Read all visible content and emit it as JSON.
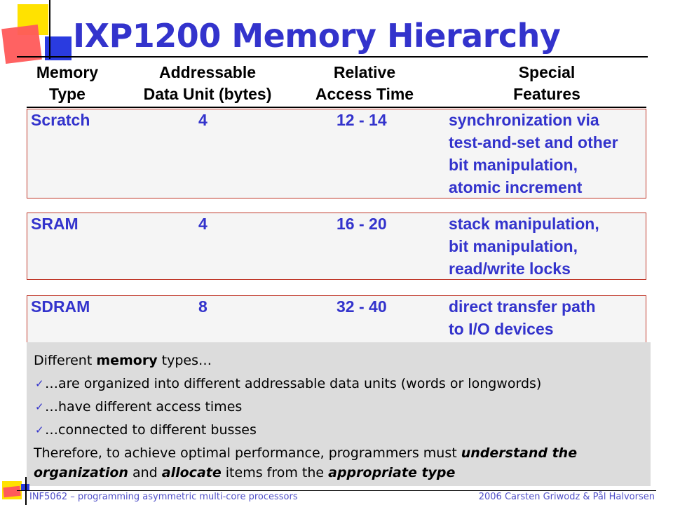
{
  "title": "IXP1200 Memory Hierarchy",
  "columns": {
    "type": [
      "Memory",
      "Type"
    ],
    "unit": [
      "Addressable",
      "Data Unit (bytes)"
    ],
    "time": [
      "Relative",
      "Access Time"
    ],
    "features": [
      "Special",
      "Features"
    ]
  },
  "rows": [
    {
      "type": "Scratch",
      "unit": "4",
      "time": "12 - 14",
      "features": [
        "synchronization via",
        "test-and-set and other",
        "bit manipulation,",
        "atomic increment"
      ]
    },
    {
      "type": "SRAM",
      "unit": "4",
      "time": "16 - 20",
      "features": [
        "stack manipulation,",
        "bit manipulation,",
        "read/write locks"
      ]
    },
    {
      "type": "SDRAM",
      "unit": "8",
      "time": "32 - 40",
      "features": [
        "direct transfer path",
        "to I/O devices"
      ]
    }
  ],
  "note": {
    "intro_pre": "Different ",
    "intro_bold": "memory",
    "intro_post": " types…",
    "bullets": [
      "…are organized into different addressable data units (words or longwords)",
      "…have different access times",
      "…connected to different busses"
    ],
    "concl_1": "Therefore, to achieve optimal performance, programmers must ",
    "concl_2": "understand the organization",
    "concl_3": " and ",
    "concl_4": "allocate",
    "concl_5": " items from the ",
    "concl_6": "appropriate type"
  },
  "footer": {
    "left": "INF5062 – programming asymmetric multi-core processors",
    "right": "2006  Carsten Griwodz & Pål Halvorsen"
  },
  "colors": {
    "title": "#3333cc",
    "cell_text": "#3333cc",
    "row_border": "#c0392b",
    "note_bg": "#dcdcdc",
    "deco_yellow": "#ffe200",
    "deco_red": "#ff5a5a",
    "deco_blue": "#2a3be0"
  }
}
